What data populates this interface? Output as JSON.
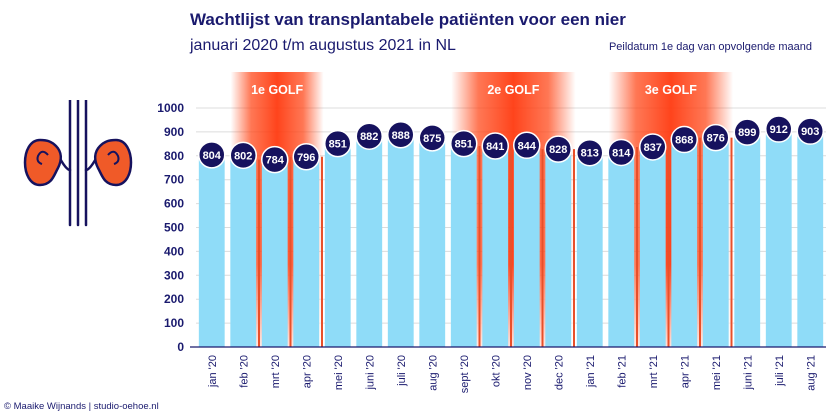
{
  "title": "Wachtlijst van transplantabele patiënten voor een nier",
  "subtitle": "januari 2020 t/m augustus 2021 in NL",
  "note": "Peildatum 1e dag van opvolgende maand",
  "credit": "© Maaike Wijnands | studio-oehoe.nl",
  "colors": {
    "bar": "#8fdcf8",
    "marker": "#16125e",
    "text": "#1a1a6e",
    "wave": "#ff4a1c",
    "divider": "#e8502a"
  },
  "icon": "kidneys-icon",
  "chart_data": {
    "type": "bar",
    "title": "Wachtlijst van transplantabele patiënten voor een nier",
    "subtitle": "januari 2020 t/m augustus 2021 in NL",
    "categories": [
      "jan '20",
      "feb '20",
      "mrt '20",
      "apr '20",
      "mei '20",
      "juni '20",
      "juli '20",
      "aug '20",
      "sept '20",
      "okt '20",
      "nov '20",
      "dec '20",
      "jan '21",
      "feb '21",
      "mrt '21",
      "apr '21",
      "mei '21",
      "juni '21",
      "juli '21",
      "aug '21"
    ],
    "values": [
      804,
      802,
      784,
      796,
      851,
      882,
      888,
      875,
      851,
      841,
      844,
      828,
      813,
      814,
      837,
      868,
      876,
      899,
      912,
      903
    ],
    "ylim": [
      0,
      1000
    ],
    "yticks": [
      0,
      100,
      200,
      300,
      400,
      500,
      600,
      700,
      800,
      900,
      1000
    ],
    "grid": true,
    "waves": [
      {
        "label": "1e GOLF",
        "start": 2,
        "end": 3
      },
      {
        "label": "2e GOLF",
        "start": 9,
        "end": 11
      },
      {
        "label": "3e GOLF",
        "start": 14,
        "end": 16
      }
    ]
  }
}
